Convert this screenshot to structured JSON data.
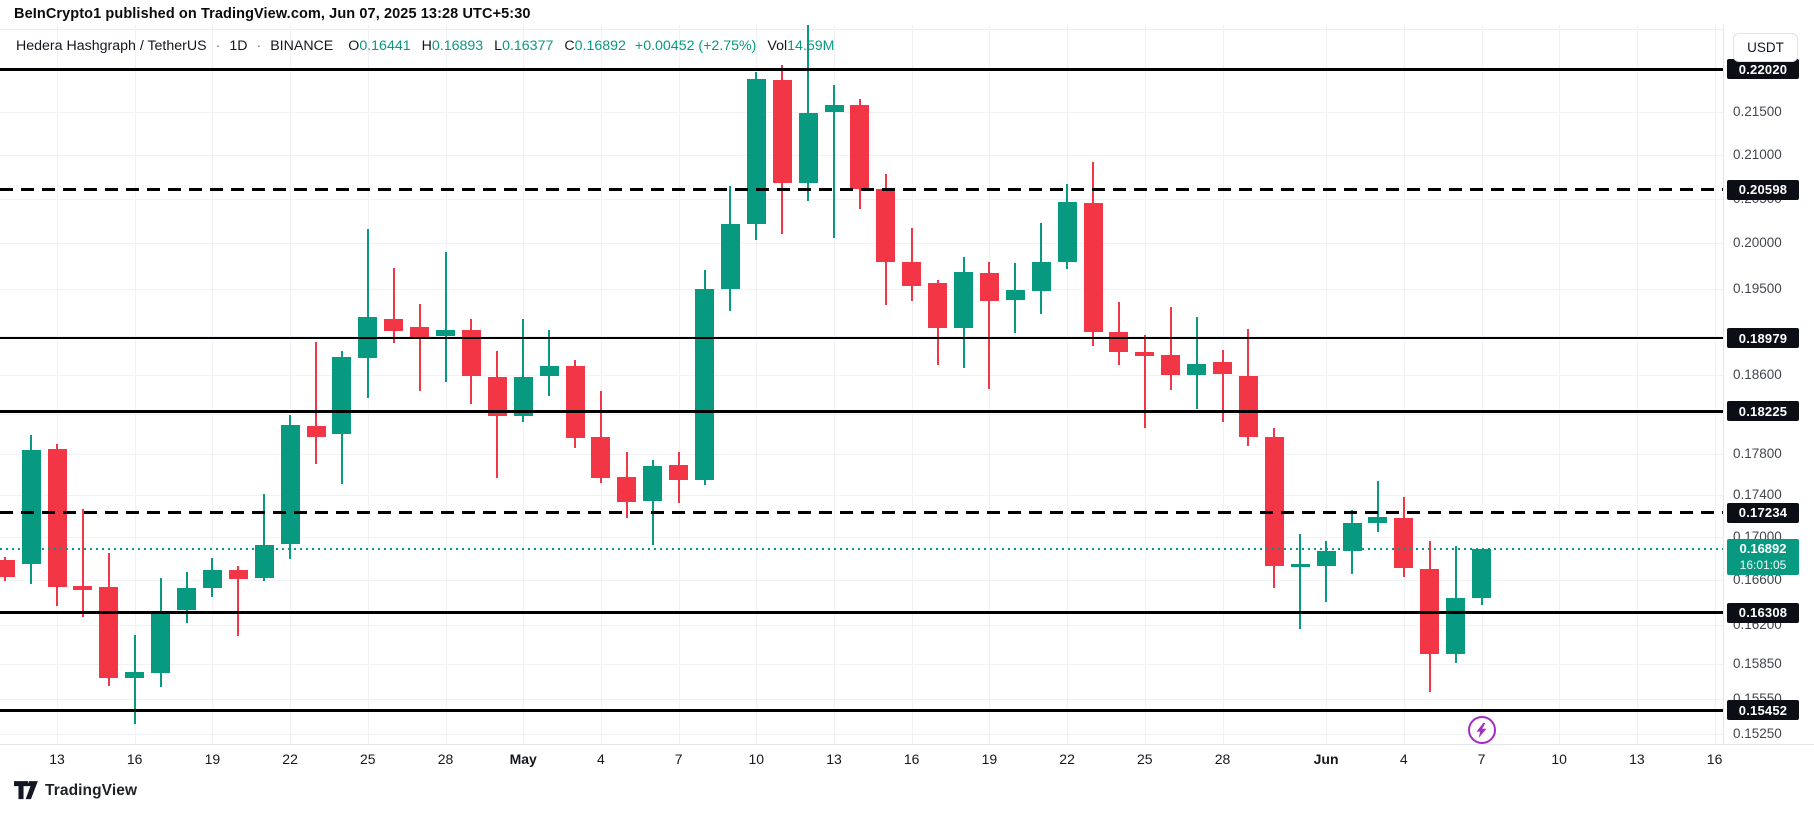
{
  "attribution": "BeInCrypto1 published on TradingView.com, Jun 07, 2025 13:28 UTC+5:30",
  "legend": {
    "symbol": "Hedera Hashgraph / TetherUS",
    "separator": "·",
    "interval": "1D",
    "exchange": "BINANCE",
    "ohlc": [
      {
        "label": "O",
        "value": "0.16441"
      },
      {
        "label": "H",
        "value": "0.16893"
      },
      {
        "label": "L",
        "value": "0.16377"
      },
      {
        "label": "C",
        "value": "0.16892"
      }
    ],
    "change": "+0.00452 (+2.75%)",
    "volume_label": "Vol",
    "volume_value": "14.59M"
  },
  "price_axis": {
    "currency": "USDT",
    "ticks": [
      {
        "text": "0.21500",
        "value": 0.215
      },
      {
        "text": "0.21000",
        "value": 0.21
      },
      {
        "text": "0.20500",
        "value": 0.205
      },
      {
        "text": "0.20000",
        "value": 0.2
      },
      {
        "text": "0.19500",
        "value": 0.195
      },
      {
        "text": "0.18600",
        "value": 0.186
      },
      {
        "text": "0.17800",
        "value": 0.178
      },
      {
        "text": "0.17400",
        "value": 0.174
      },
      {
        "text": "0.17000",
        "value": 0.17
      },
      {
        "text": "0.16600",
        "value": 0.166
      },
      {
        "text": "0.16200",
        "value": 0.162
      },
      {
        "text": "0.15850",
        "value": 0.1585
      },
      {
        "text": "0.15550",
        "value": 0.1555
      },
      {
        "text": "0.15250",
        "value": 0.1525
      }
    ],
    "extra_gridlines": [
      0.19,
      0.182
    ],
    "current": {
      "price": "0.16892",
      "countdown": "16:01:05",
      "value": 0.16892
    }
  },
  "time_axis": {
    "labels": [
      {
        "text": "13",
        "day": 0,
        "bold": false
      },
      {
        "text": "16",
        "day": 3,
        "bold": false
      },
      {
        "text": "19",
        "day": 6,
        "bold": false
      },
      {
        "text": "22",
        "day": 9,
        "bold": false
      },
      {
        "text": "25",
        "day": 12,
        "bold": false
      },
      {
        "text": "28",
        "day": 15,
        "bold": false
      },
      {
        "text": "May",
        "day": 18,
        "bold": true
      },
      {
        "text": "4",
        "day": 21,
        "bold": false
      },
      {
        "text": "7",
        "day": 24,
        "bold": false
      },
      {
        "text": "10",
        "day": 27,
        "bold": false
      },
      {
        "text": "13",
        "day": 30,
        "bold": false
      },
      {
        "text": "16",
        "day": 33,
        "bold": false
      },
      {
        "text": "19",
        "day": 36,
        "bold": false
      },
      {
        "text": "22",
        "day": 39,
        "bold": false
      },
      {
        "text": "25",
        "day": 42,
        "bold": false
      },
      {
        "text": "28",
        "day": 45,
        "bold": false
      },
      {
        "text": "Jun",
        "day": 49,
        "bold": true
      },
      {
        "text": "4",
        "day": 52,
        "bold": false
      },
      {
        "text": "7",
        "day": 55,
        "bold": false
      },
      {
        "text": "10",
        "day": 58,
        "bold": false
      },
      {
        "text": "13",
        "day": 61,
        "bold": false
      },
      {
        "text": "16",
        "day": 64,
        "bold": false
      }
    ]
  },
  "marker": {
    "name": "flash-event",
    "day": 55,
    "anchor_price": 0.1529
  },
  "footer": {
    "brand": "TradingView"
  },
  "colors": {
    "up": "#089981",
    "down": "#f23645",
    "level_line": "#000000",
    "badge_bg": "#0c0e15",
    "current": "#089981",
    "grid": "#f0f2f6",
    "marker_purple": "#a32cc4"
  },
  "chart_data": {
    "type": "candlestick",
    "title": "Hedera Hashgraph / TetherUS · 1D · BINANCE",
    "ylabel": "USDT",
    "y_scale": "log",
    "ylim": [
      0.151,
      0.227
    ],
    "grid": true,
    "levels": [
      {
        "price": 0.2202,
        "label": "0.22020",
        "style": "solid",
        "weight": 3
      },
      {
        "price": 0.20598,
        "label": "0.20598",
        "style": "dashed",
        "weight": 3
      },
      {
        "price": 0.18979,
        "label": "0.18979",
        "style": "solid",
        "weight": 1.5
      },
      {
        "price": 0.18225,
        "label": "0.18225",
        "style": "solid",
        "weight": 3
      },
      {
        "price": 0.17234,
        "label": "0.17234",
        "style": "dashed",
        "weight": 3
      },
      {
        "price": 0.16308,
        "label": "0.16308",
        "style": "solid",
        "weight": 3
      },
      {
        "price": 0.15452,
        "label": "0.15452",
        "style": "solid",
        "weight": 3
      }
    ],
    "candles": [
      {
        "d": "Apr 11",
        "o": 0.1679,
        "h": 0.1682,
        "l": 0.1659,
        "c": 0.1663
      },
      {
        "d": "Apr 12",
        "o": 0.1675,
        "h": 0.1799,
        "l": 0.1657,
        "c": 0.1784
      },
      {
        "d": "Apr 13",
        "o": 0.1785,
        "h": 0.179,
        "l": 0.1637,
        "c": 0.1654
      },
      {
        "d": "Apr 14",
        "o": 0.1655,
        "h": 0.1727,
        "l": 0.1627,
        "c": 0.1651
      },
      {
        "d": "Apr 15",
        "o": 0.1654,
        "h": 0.1685,
        "l": 0.1566,
        "c": 0.1573
      },
      {
        "d": "Apr 16",
        "o": 0.1573,
        "h": 0.1611,
        "l": 0.1533,
        "c": 0.1578
      },
      {
        "d": "Apr 17",
        "o": 0.1577,
        "h": 0.1662,
        "l": 0.1565,
        "c": 0.1632
      },
      {
        "d": "Apr 18",
        "o": 0.1633,
        "h": 0.1668,
        "l": 0.1621,
        "c": 0.1653
      },
      {
        "d": "Apr 19",
        "o": 0.1653,
        "h": 0.1681,
        "l": 0.1645,
        "c": 0.167
      },
      {
        "d": "Apr 20",
        "o": 0.167,
        "h": 0.1673,
        "l": 0.161,
        "c": 0.1661
      },
      {
        "d": "Apr 21",
        "o": 0.1662,
        "h": 0.1741,
        "l": 0.1659,
        "c": 0.1693
      },
      {
        "d": "Apr 22",
        "o": 0.1694,
        "h": 0.1819,
        "l": 0.168,
        "c": 0.1809
      },
      {
        "d": "Apr 23",
        "o": 0.1808,
        "h": 0.1894,
        "l": 0.177,
        "c": 0.1797
      },
      {
        "d": "Apr 24",
        "o": 0.18,
        "h": 0.1884,
        "l": 0.1751,
        "c": 0.1878
      },
      {
        "d": "Apr 25",
        "o": 0.1877,
        "h": 0.2016,
        "l": 0.1836,
        "c": 0.192
      },
      {
        "d": "Apr 26",
        "o": 0.1918,
        "h": 0.1973,
        "l": 0.1893,
        "c": 0.1905
      },
      {
        "d": "Apr 27",
        "o": 0.1909,
        "h": 0.1934,
        "l": 0.1843,
        "c": 0.1898
      },
      {
        "d": "Apr 28",
        "o": 0.19,
        "h": 0.199,
        "l": 0.1852,
        "c": 0.1906
      },
      {
        "d": "Apr 29",
        "o": 0.1906,
        "h": 0.1918,
        "l": 0.183,
        "c": 0.1858
      },
      {
        "d": "Apr 30",
        "o": 0.1858,
        "h": 0.1884,
        "l": 0.1757,
        "c": 0.1818
      },
      {
        "d": "May 1",
        "o": 0.1818,
        "h": 0.1918,
        "l": 0.1812,
        "c": 0.1858
      },
      {
        "d": "May 2",
        "o": 0.1858,
        "h": 0.1906,
        "l": 0.1838,
        "c": 0.1869
      },
      {
        "d": "May 3",
        "o": 0.1869,
        "h": 0.1875,
        "l": 0.1786,
        "c": 0.1796
      },
      {
        "d": "May 4",
        "o": 0.1797,
        "h": 0.1843,
        "l": 0.1752,
        "c": 0.1757
      },
      {
        "d": "May 5",
        "o": 0.1758,
        "h": 0.1782,
        "l": 0.1718,
        "c": 0.1733
      },
      {
        "d": "May 6",
        "o": 0.1734,
        "h": 0.1774,
        "l": 0.1693,
        "c": 0.1768
      },
      {
        "d": "May 7",
        "o": 0.1769,
        "h": 0.1782,
        "l": 0.1733,
        "c": 0.1755
      },
      {
        "d": "May 8",
        "o": 0.1755,
        "h": 0.1971,
        "l": 0.175,
        "c": 0.195
      },
      {
        "d": "May 9",
        "o": 0.195,
        "h": 0.2064,
        "l": 0.1926,
        "c": 0.2021
      },
      {
        "d": "May 10",
        "o": 0.2021,
        "h": 0.2199,
        "l": 0.2004,
        "c": 0.219
      },
      {
        "d": "May 11",
        "o": 0.2189,
        "h": 0.2207,
        "l": 0.201,
        "c": 0.2067
      },
      {
        "d": "May 12",
        "o": 0.2067,
        "h": 0.2263,
        "l": 0.2047,
        "c": 0.2149
      },
      {
        "d": "May 13",
        "o": 0.215,
        "h": 0.2183,
        "l": 0.2006,
        "c": 0.2159
      },
      {
        "d": "May 14",
        "o": 0.2159,
        "h": 0.2166,
        "l": 0.2038,
        "c": 0.2061
      },
      {
        "d": "May 15",
        "o": 0.2061,
        "h": 0.2078,
        "l": 0.1933,
        "c": 0.1979
      },
      {
        "d": "May 16",
        "o": 0.1979,
        "h": 0.2017,
        "l": 0.1937,
        "c": 0.1953
      },
      {
        "d": "May 17",
        "o": 0.1956,
        "h": 0.196,
        "l": 0.187,
        "c": 0.1908
      },
      {
        "d": "May 18",
        "o": 0.1908,
        "h": 0.1985,
        "l": 0.1867,
        "c": 0.1968
      },
      {
        "d": "May 19",
        "o": 0.1967,
        "h": 0.1979,
        "l": 0.1845,
        "c": 0.1937
      },
      {
        "d": "May 20",
        "o": 0.1938,
        "h": 0.1978,
        "l": 0.1903,
        "c": 0.1949
      },
      {
        "d": "May 21",
        "o": 0.1948,
        "h": 0.2022,
        "l": 0.1923,
        "c": 0.1979
      },
      {
        "d": "May 22",
        "o": 0.1979,
        "h": 0.2067,
        "l": 0.1972,
        "c": 0.2046
      },
      {
        "d": "May 23",
        "o": 0.2045,
        "h": 0.2092,
        "l": 0.189,
        "c": 0.1904
      },
      {
        "d": "May 24",
        "o": 0.1904,
        "h": 0.1936,
        "l": 0.187,
        "c": 0.1883
      },
      {
        "d": "May 25",
        "o": 0.1883,
        "h": 0.1901,
        "l": 0.1806,
        "c": 0.1879
      },
      {
        "d": "May 26",
        "o": 0.188,
        "h": 0.1931,
        "l": 0.1844,
        "c": 0.1859
      },
      {
        "d": "May 27",
        "o": 0.1859,
        "h": 0.192,
        "l": 0.1825,
        "c": 0.1871
      },
      {
        "d": "May 28",
        "o": 0.1873,
        "h": 0.1885,
        "l": 0.1812,
        "c": 0.186
      },
      {
        "d": "May 29",
        "o": 0.1859,
        "h": 0.1907,
        "l": 0.1788,
        "c": 0.1797
      },
      {
        "d": "May 30",
        "o": 0.1797,
        "h": 0.1806,
        "l": 0.1653,
        "c": 0.1673
      },
      {
        "d": "May 31",
        "o": 0.1672,
        "h": 0.1703,
        "l": 0.1616,
        "c": 0.1675
      },
      {
        "d": "Jun 1",
        "o": 0.1673,
        "h": 0.1697,
        "l": 0.164,
        "c": 0.1687
      },
      {
        "d": "Jun 2",
        "o": 0.1687,
        "h": 0.1726,
        "l": 0.1666,
        "c": 0.1714
      },
      {
        "d": "Jun 3",
        "o": 0.1713,
        "h": 0.1754,
        "l": 0.1705,
        "c": 0.1719
      },
      {
        "d": "Jun 4",
        "o": 0.1718,
        "h": 0.1738,
        "l": 0.1663,
        "c": 0.1671
      },
      {
        "d": "Jun 5",
        "o": 0.1671,
        "h": 0.1697,
        "l": 0.1561,
        "c": 0.1594
      },
      {
        "d": "Jun 6",
        "o": 0.1594,
        "h": 0.1692,
        "l": 0.1586,
        "c": 0.1644
      },
      {
        "d": "Jun 7",
        "o": 0.16441,
        "h": 0.16893,
        "l": 0.16377,
        "c": 0.16892
      }
    ]
  }
}
